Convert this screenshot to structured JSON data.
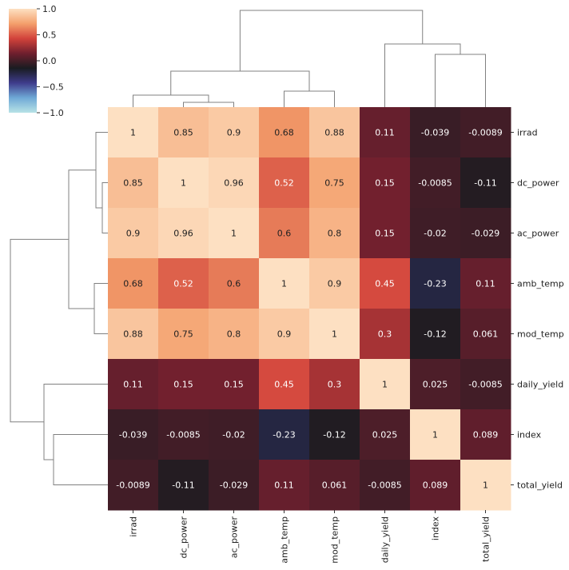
{
  "chart_data": {
    "type": "heatmap",
    "title": "",
    "subtype": "clustermap",
    "labels": [
      "irrad",
      "dc_power",
      "ac_power",
      "amb_temp",
      "mod_temp",
      "daily_yield",
      "index",
      "total_yield"
    ],
    "matrix": [
      [
        1,
        0.85,
        0.9,
        0.68,
        0.88,
        0.11,
        -0.039,
        -0.0089
      ],
      [
        0.85,
        1,
        0.96,
        0.52,
        0.75,
        0.15,
        -0.0085,
        -0.11
      ],
      [
        0.9,
        0.96,
        1,
        0.6,
        0.8,
        0.15,
        -0.02,
        -0.029
      ],
      [
        0.68,
        0.52,
        0.6,
        1,
        0.9,
        0.45,
        -0.23,
        0.11
      ],
      [
        0.88,
        0.75,
        0.8,
        0.9,
        1,
        0.3,
        -0.12,
        0.061
      ],
      [
        0.11,
        0.15,
        0.15,
        0.45,
        0.3,
        1,
        0.025,
        -0.0085
      ],
      [
        -0.039,
        -0.0085,
        -0.02,
        -0.23,
        -0.12,
        0.025,
        1,
        0.089
      ],
      [
        -0.0089,
        -0.11,
        -0.029,
        0.11,
        0.061,
        -0.0085,
        0.089,
        1
      ]
    ],
    "annotations": [
      [
        "1",
        "0.85",
        "0.9",
        "0.68",
        "0.88",
        "0.11",
        "-0.039",
        "-0.0089"
      ],
      [
        "0.85",
        "1",
        "0.96",
        "0.52",
        "0.75",
        "0.15",
        "-0.0085",
        "-0.11"
      ],
      [
        "0.9",
        "0.96",
        "1",
        "0.6",
        "0.8",
        "0.15",
        "-0.02",
        "-0.029"
      ],
      [
        "0.68",
        "0.52",
        "0.6",
        "1",
        "0.9",
        "0.45",
        "-0.23",
        "0.11"
      ],
      [
        "0.88",
        "0.75",
        "0.8",
        "0.9",
        "1",
        "0.3",
        "-0.12",
        "0.061"
      ],
      [
        "0.11",
        "0.15",
        "0.15",
        "0.45",
        "0.3",
        "1",
        "0.025",
        "-0.0085"
      ],
      [
        "-0.039",
        "-0.0085",
        "-0.02",
        "-0.23",
        "-0.12",
        "0.025",
        "1",
        "0.089"
      ],
      [
        "-0.0089",
        "-0.11",
        "-0.029",
        "0.11",
        "0.061",
        "-0.0085",
        "0.089",
        "1"
      ]
    ],
    "vmin": -1,
    "vmax": 1,
    "colorbar": {
      "ticks": [
        1.0,
        0.5,
        0.0,
        -0.5,
        -1.0
      ],
      "tick_labels": [
        "1.0",
        "0.5",
        "0.0",
        "−0.5",
        "−1.0"
      ],
      "placement": "top-left",
      "colormap": "icefire-like diverging (light cyan → dark → light peach)",
      "stops": [
        "#b8e3e6",
        "#6fa9d6",
        "#3f3c8c",
        "#1a1c21",
        "#701f2e",
        "#d2433b",
        "#f4a06c",
        "#fde0c2"
      ]
    },
    "dendrogram_order": [
      "irrad",
      "dc_power",
      "ac_power",
      "amb_temp",
      "mod_temp",
      "daily_yield",
      "index",
      "total_yield"
    ],
    "xlabel": "",
    "ylabel": ""
  },
  "colors": {
    "dendrogram_line": "#808080",
    "background": "#ffffff",
    "text_dark": "#222222",
    "text_light": "#ffffff"
  }
}
